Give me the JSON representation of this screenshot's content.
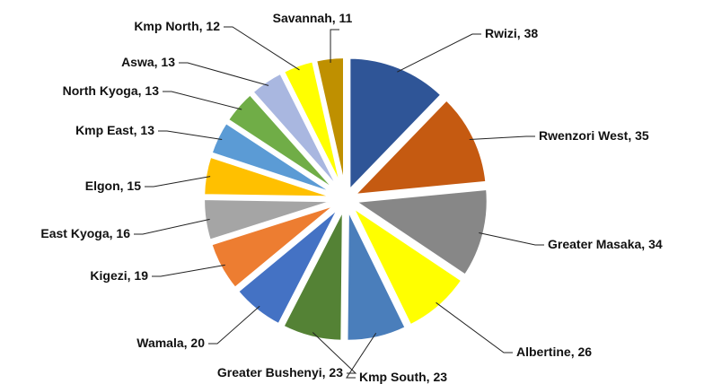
{
  "chart_data": {
    "type": "pie",
    "categories": [
      "Rwizi",
      "Rwenzori West",
      "Greater Masaka",
      "Albertine",
      "Kmp South",
      "Greater Bushenyi",
      "Wamala",
      "Kigezi",
      "East Kyoga",
      "Elgon",
      "Kmp East",
      "North Kyoga",
      "Aswa",
      "Kmp North",
      "Savannah"
    ],
    "values": [
      38,
      35,
      34,
      26,
      23,
      23,
      20,
      19,
      16,
      15,
      13,
      13,
      13,
      12,
      11
    ],
    "colors": [
      "#2f5597",
      "#c55a11",
      "#878787",
      "#ffff00",
      "#4a7ebb",
      "#548235",
      "#4472c4",
      "#ed7d31",
      "#a5a5a5",
      "#ffc000",
      "#5b9bd5",
      "#70ad47",
      "#a9b7e0",
      "#ffff00",
      "#bf9000"
    ]
  }
}
